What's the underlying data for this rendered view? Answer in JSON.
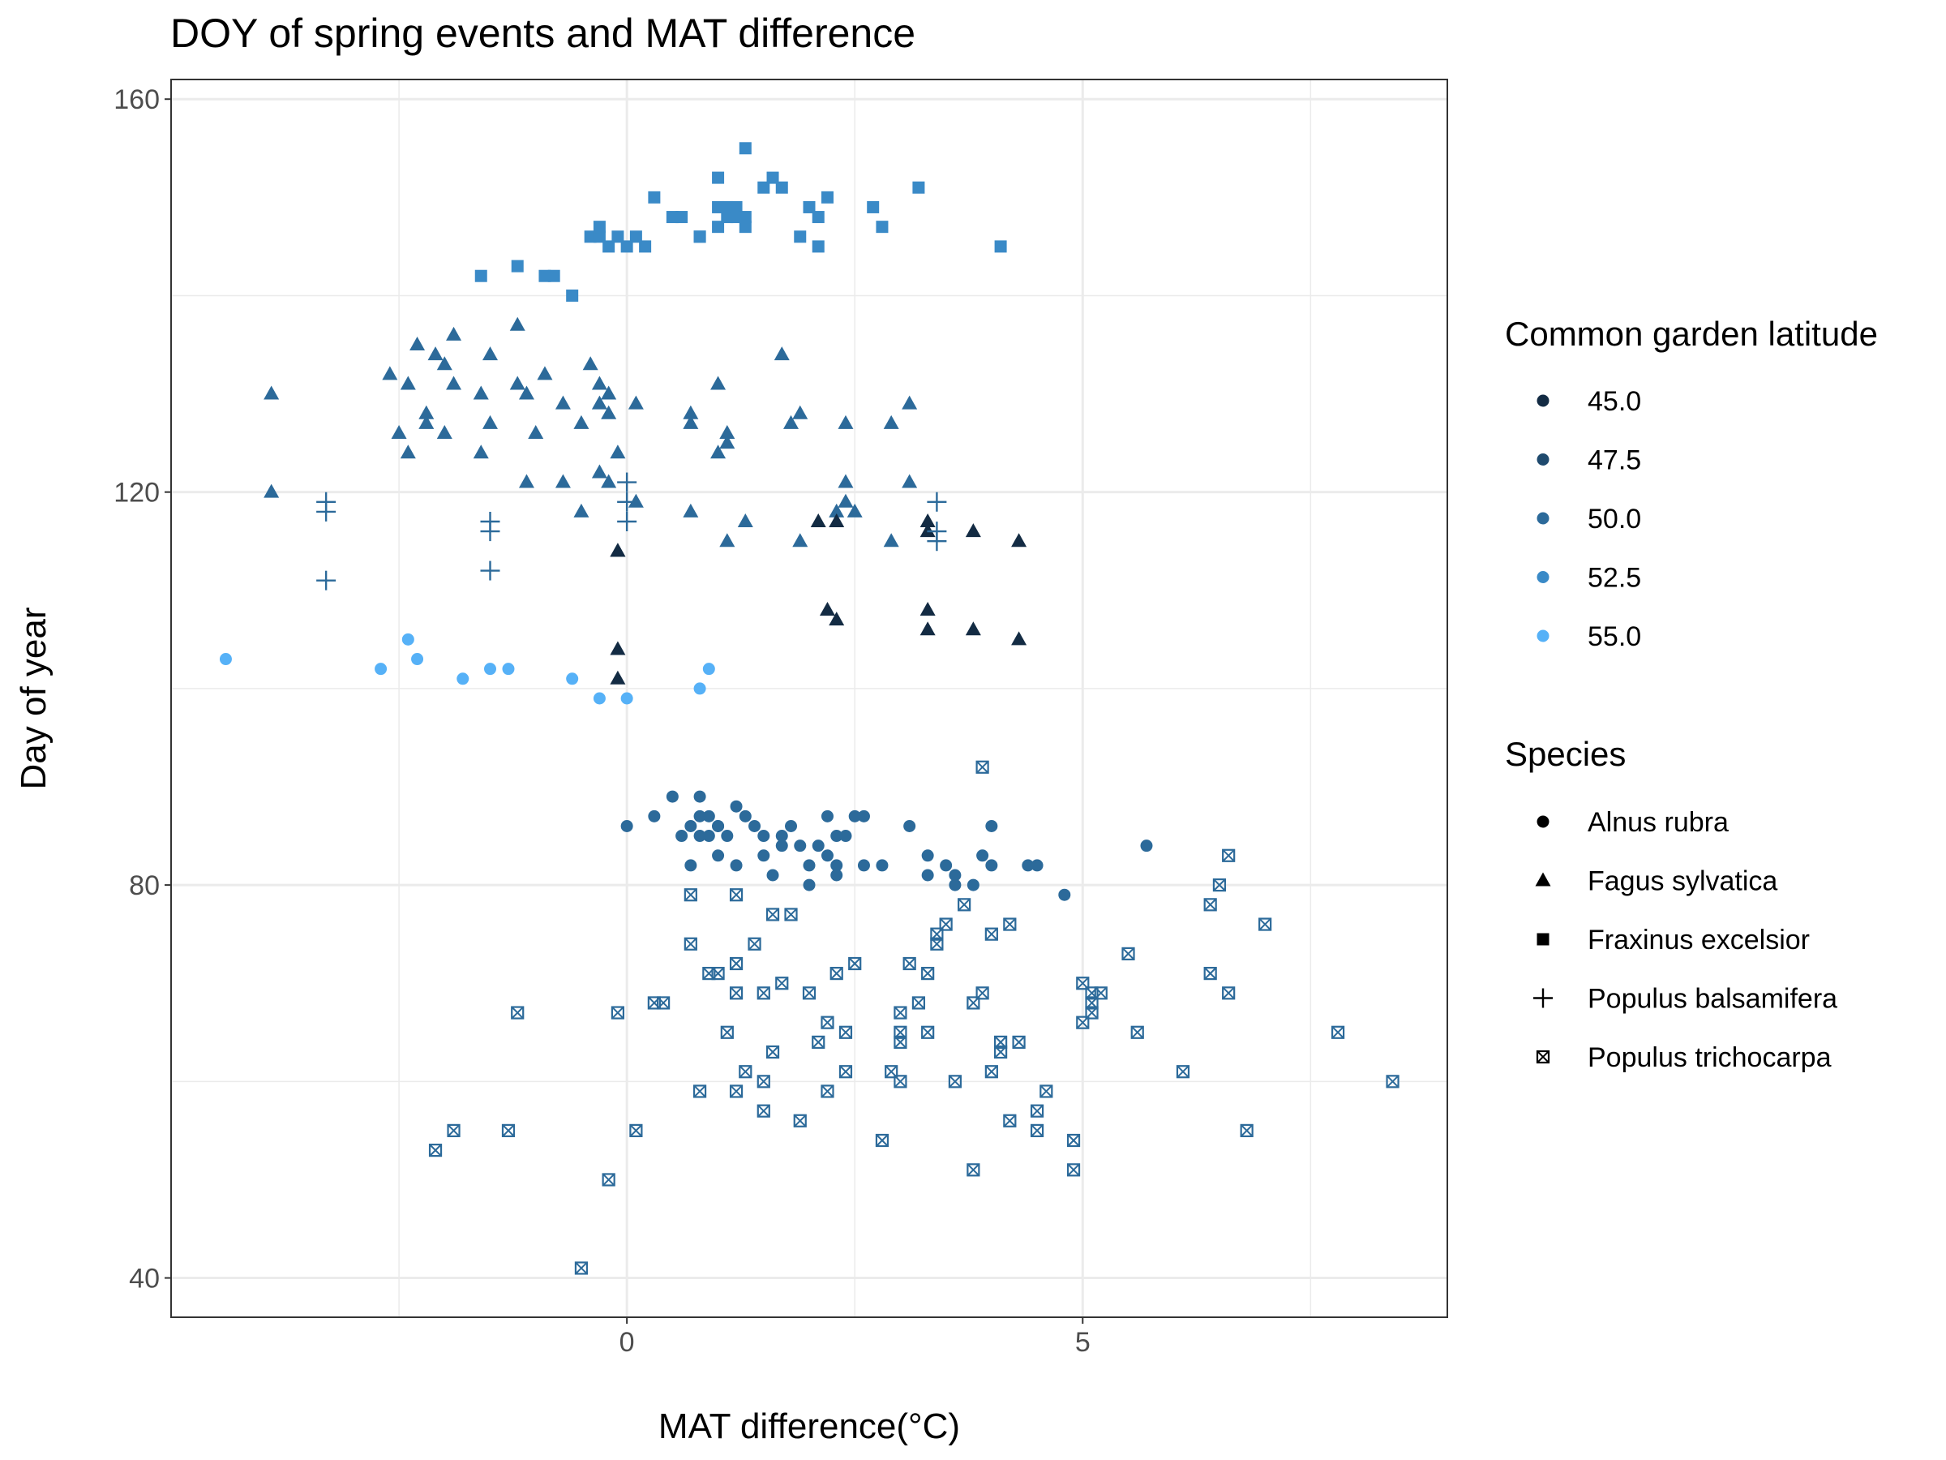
{
  "chart_data": {
    "type": "scatter",
    "title": "DOY of spring events and MAT difference",
    "xlabel": "MAT difference(°C)",
    "ylabel": "Day of year",
    "xlim": [
      -5,
      9
    ],
    "ylim": [
      36,
      162
    ],
    "x_ticks": [
      0,
      5
    ],
    "y_ticks": [
      40,
      80,
      120,
      160
    ],
    "x_minor_ticks": [
      -2.5,
      2.5,
      7.5
    ],
    "y_minor_ticks": [
      60,
      100,
      140
    ],
    "grid": true,
    "legend_position": "right",
    "color_legend": {
      "title": "Common garden latitude",
      "entries": [
        {
          "label": "45.0",
          "color": "#132B43"
        },
        {
          "label": "47.5",
          "color": "#1F4A6E"
        },
        {
          "label": "50.0",
          "color": "#2C6A9A"
        },
        {
          "label": "52.5",
          "color": "#3A8AC7"
        },
        {
          "label": "55.0",
          "color": "#56B1F7"
        }
      ]
    },
    "shape_legend": {
      "title": "Species",
      "entries": [
        {
          "label": "Alnus rubra",
          "shape": "circle"
        },
        {
          "label": "Fagus sylvatica",
          "shape": "triangle"
        },
        {
          "label": "Fraxinus excelsior",
          "shape": "square"
        },
        {
          "label": "Populus balsamifera",
          "shape": "plus"
        },
        {
          "label": "Populus trichocarpa",
          "shape": "square-cross"
        }
      ]
    },
    "series": [
      {
        "species": "Fraxinus excelsior",
        "shape": "square",
        "color": "#3A8AC7",
        "x": [
          -1.6,
          -1.2,
          -0.9,
          -0.8,
          -0.6,
          -0.4,
          -0.3,
          -0.3,
          -0.2,
          -0.1,
          0.0,
          0.1,
          0.2,
          0.3,
          0.5,
          0.6,
          0.8,
          1.0,
          1.0,
          1.1,
          1.1,
          1.2,
          1.2,
          1.3,
          1.3,
          1.5,
          1.6,
          1.7,
          1.9,
          2.0,
          2.1,
          2.2,
          2.7,
          2.8,
          3.2,
          4.1,
          1.3,
          0.8,
          2.1,
          1.0
        ],
        "y": [
          142,
          143,
          142,
          142,
          140,
          146,
          146,
          147,
          145,
          146,
          145,
          146,
          145,
          150,
          148,
          148,
          146,
          149,
          147,
          148,
          149,
          149,
          148,
          147,
          155,
          151,
          152,
          151,
          146,
          149,
          145,
          150,
          149,
          147,
          151,
          145,
          148,
          146,
          148,
          152
        ]
      },
      {
        "species": "Fagus sylvatica",
        "shape": "triangle",
        "color": "#2C6A9A",
        "x": [
          -3.9,
          -3.9,
          -2.6,
          -2.5,
          -2.4,
          -2.4,
          -2.3,
          -2.2,
          -2.2,
          -2.1,
          -2.0,
          -2.0,
          -1.9,
          -1.9,
          -1.6,
          -1.6,
          -1.5,
          -1.5,
          -1.2,
          -1.2,
          -1.1,
          -1.1,
          -1.0,
          -0.9,
          -0.7,
          -0.7,
          -0.5,
          -0.5,
          -0.4,
          -0.3,
          -0.3,
          -0.3,
          -0.2,
          -0.2,
          -0.2,
          -0.1,
          0.1,
          0.1,
          0.7,
          0.7,
          0.7,
          1.0,
          1.0,
          1.1,
          1.1,
          1.3,
          1.8,
          1.9,
          1.9,
          1.7,
          2.4,
          2.4,
          2.4,
          2.5,
          2.9,
          2.9,
          3.1,
          3.1,
          1.1,
          2.3
        ],
        "y": [
          130,
          120,
          132,
          126,
          131,
          124,
          135,
          128,
          127,
          134,
          133,
          126,
          136,
          131,
          124,
          130,
          134,
          127,
          137,
          131,
          130,
          121,
          126,
          132,
          129,
          121,
          127,
          118,
          133,
          129,
          131,
          122,
          130,
          128,
          121,
          124,
          129,
          119,
          128,
          127,
          118,
          131,
          124,
          126,
          115,
          117,
          127,
          115,
          128,
          134,
          127,
          121,
          119,
          118,
          115,
          127,
          129,
          121,
          125,
          118
        ]
      },
      {
        "species": "Fagus sylvatica",
        "shape": "triangle",
        "color": "#132B43",
        "x": [
          -0.1,
          -0.1,
          -0.1,
          -0.1,
          2.1,
          2.2,
          2.3,
          2.3,
          3.3,
          3.3,
          3.3,
          3.3,
          3.8,
          3.8,
          4.3,
          4.3
        ],
        "y": [
          114,
          114,
          104,
          101,
          117,
          108,
          107,
          117,
          117,
          116,
          108,
          106,
          116,
          106,
          115,
          105
        ]
      },
      {
        "species": "Populus balsamifera",
        "shape": "plus",
        "color": "#2C6A9A",
        "x": [
          -3.3,
          -3.3,
          -3.3,
          -1.5,
          -1.5,
          -1.5,
          0.0,
          0.0,
          0.0,
          3.4,
          3.4,
          3.4
        ],
        "y": [
          119,
          118,
          111,
          117,
          116,
          112,
          121,
          119,
          117,
          119,
          115,
          116
        ]
      },
      {
        "species": "Alnus rubra",
        "shape": "circle",
        "color": "#56B1F7",
        "x": [
          -4.4,
          -2.7,
          -2.4,
          -2.3,
          -1.8,
          -1.5,
          -1.3,
          -0.6,
          -0.3,
          0.0,
          0.8,
          0.9
        ],
        "y": [
          103,
          102,
          105,
          103,
          101,
          102,
          102,
          101,
          99,
          99,
          100,
          102
        ]
      },
      {
        "species": "Alnus rubra",
        "shape": "circle",
        "color": "#2C6A9A",
        "x": [
          0.0,
          0.3,
          0.5,
          0.6,
          0.7,
          0.7,
          0.8,
          0.8,
          0.9,
          0.9,
          1.0,
          1.0,
          1.0,
          1.1,
          1.2,
          1.2,
          1.3,
          1.4,
          1.5,
          1.5,
          1.6,
          1.7,
          1.7,
          1.8,
          1.9,
          2.0,
          2.0,
          2.1,
          2.2,
          2.2,
          2.3,
          2.3,
          2.3,
          2.4,
          2.5,
          2.6,
          2.6,
          2.8,
          3.1,
          3.3,
          3.3,
          3.5,
          3.6,
          3.6,
          3.8,
          3.9,
          4.0,
          4.0,
          4.4,
          4.5,
          4.8,
          5.7,
          0.8
        ],
        "y": [
          86,
          87,
          89,
          85,
          82,
          86,
          89,
          87,
          87,
          85,
          86,
          83,
          86,
          85,
          88,
          82,
          87,
          86,
          85,
          83,
          81,
          84,
          85,
          86,
          84,
          82,
          80,
          84,
          87,
          83,
          82,
          85,
          81,
          85,
          87,
          82,
          87,
          82,
          86,
          83,
          81,
          82,
          80,
          81,
          80,
          83,
          82,
          86,
          82,
          82,
          79,
          84,
          85
        ]
      },
      {
        "species": "Populus trichocarpa",
        "shape": "square-cross",
        "color": "#2C6A9A",
        "x": [
          -2.1,
          -1.9,
          -1.3,
          -1.2,
          -0.5,
          -0.2,
          -0.1,
          0.1,
          0.3,
          0.4,
          0.7,
          0.7,
          0.8,
          0.9,
          1.0,
          1.1,
          1.2,
          1.2,
          1.2,
          1.2,
          1.3,
          1.4,
          1.5,
          1.5,
          1.5,
          1.6,
          1.6,
          1.7,
          1.8,
          1.9,
          2.0,
          2.1,
          2.2,
          2.2,
          2.3,
          2.4,
          2.4,
          2.5,
          2.8,
          2.9,
          3.0,
          3.0,
          3.0,
          3.1,
          3.2,
          3.3,
          3.3,
          3.4,
          3.4,
          3.5,
          3.6,
          3.7,
          3.8,
          3.8,
          3.9,
          4.0,
          4.0,
          4.1,
          4.1,
          4.2,
          4.2,
          4.3,
          4.5,
          4.5,
          4.6,
          4.9,
          4.9,
          5.0,
          5.0,
          5.1,
          5.1,
          5.1,
          5.2,
          5.5,
          5.6,
          6.1,
          6.4,
          6.4,
          6.5,
          6.6,
          6.6,
          6.8,
          7.0,
          7.8,
          8.4,
          3.9,
          3.0
        ],
        "y": [
          53,
          55,
          55,
          67,
          41,
          50,
          67,
          55,
          68,
          68,
          79,
          74,
          59,
          71,
          71,
          65,
          79,
          72,
          69,
          59,
          61,
          74,
          57,
          60,
          69,
          77,
          63,
          70,
          77,
          56,
          69,
          64,
          59,
          66,
          71,
          65,
          61,
          72,
          54,
          61,
          65,
          64,
          60,
          72,
          68,
          65,
          71,
          74,
          75,
          76,
          60,
          78,
          51,
          68,
          69,
          61,
          75,
          63,
          64,
          56,
          76,
          64,
          57,
          55,
          59,
          54,
          51,
          70,
          66,
          69,
          68,
          67,
          69,
          73,
          65,
          61,
          71,
          78,
          80,
          69,
          83,
          55,
          76,
          65,
          60,
          92,
          67
        ]
      }
    ]
  }
}
